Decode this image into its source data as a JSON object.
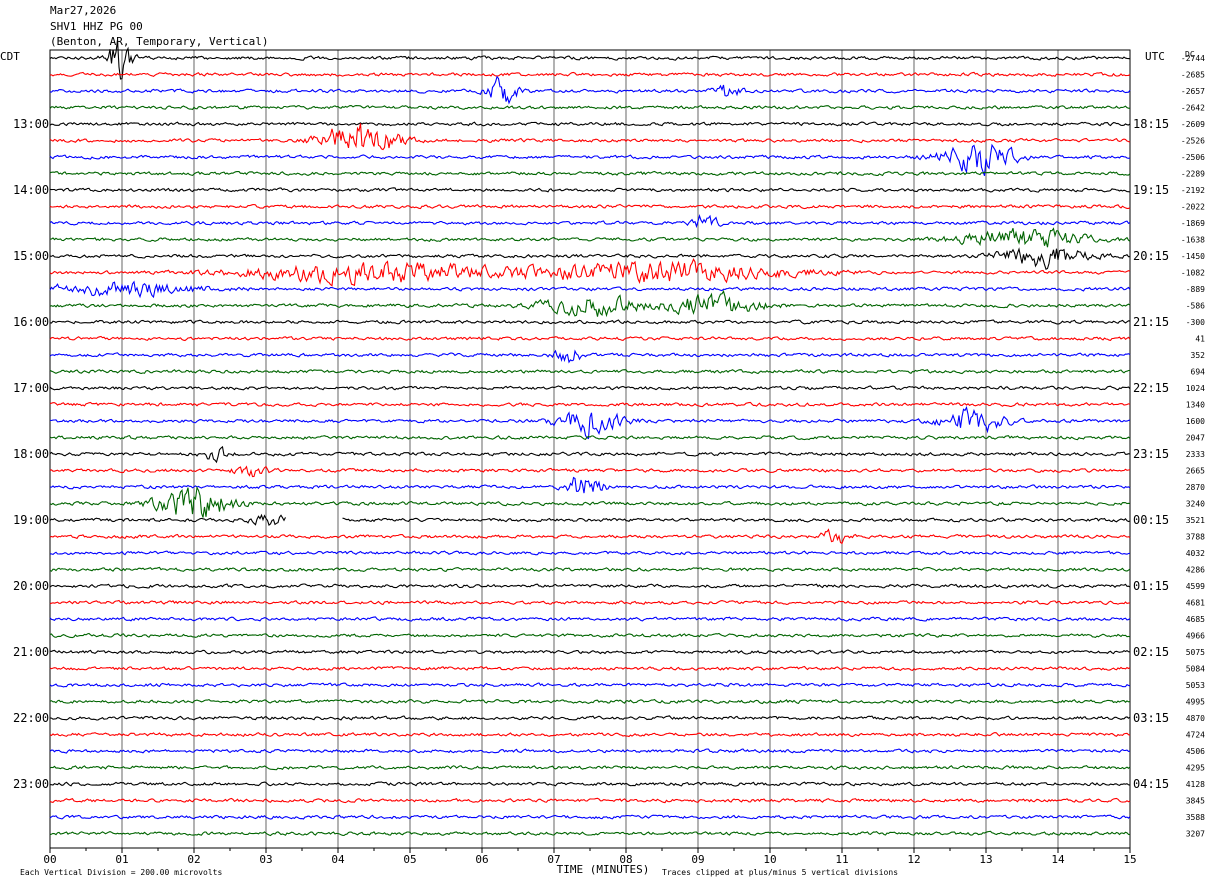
{
  "header": {
    "date": "Mar27,2026",
    "station": "SHV1 HHZ PG 00",
    "location": "(Benton, AR, Temporary, Vertical)"
  },
  "left_zone_label": "CDT",
  "right_zone_label": "UTC",
  "dc_label": "DC",
  "footer": {
    "scale_note": "Each Vertical Division =  200.00 microvolts",
    "clip_note": "Traces clipped at plus/minus 5 vertical divisions"
  },
  "colors": {
    "trace_cycle": [
      "#000000",
      "#ff0000",
      "#0000ff",
      "#006400"
    ],
    "grid": "#000000"
  },
  "chart_data": {
    "type": "line",
    "xlabel": "TIME (MINUTES)",
    "xlim": [
      0,
      15
    ],
    "x_ticks": [
      "00",
      "01",
      "02",
      "03",
      "04",
      "05",
      "06",
      "07",
      "08",
      "09",
      "10",
      "11",
      "12",
      "13",
      "14",
      "15"
    ],
    "left_time_labels": [
      "13:00",
      "14:00",
      "15:00",
      "16:00",
      "17:00",
      "18:00",
      "19:00",
      "20:00",
      "21:00",
      "22:00",
      "23:00"
    ],
    "right_time_labels": [
      "18:15",
      "19:15",
      "20:15",
      "21:15",
      "22:15",
      "23:15",
      "00:15",
      "01:15",
      "02:15",
      "03:15",
      "04:15"
    ],
    "trace_count": 48,
    "dc_offsets": [
      "-2744",
      "-2685",
      "-2657",
      "-2642",
      "-2609",
      "-2526",
      "-2506",
      "-2289",
      "-2192",
      "-2022",
      "-1869",
      "-1638",
      "-1450",
      "-1082",
      "-889",
      "-586",
      "-300",
      "41",
      "352",
      "694",
      "1024",
      "1340",
      "1600",
      "2047",
      "2333",
      "2665",
      "2870",
      "3240",
      "3521",
      "3788",
      "4032",
      "4286",
      "4599",
      "4681",
      "4685",
      "4966",
      "5075",
      "5084",
      "5053",
      "4995",
      "4870",
      "4724",
      "4506",
      "4295",
      "4128",
      "3845",
      "3588",
      "3207"
    ],
    "events": [
      {
        "trace": 0,
        "minute": 0.95,
        "width": 0.4,
        "amp": 5
      },
      {
        "trace": 2,
        "minute": 6.3,
        "width": 0.5,
        "amp": 3.5
      },
      {
        "trace": 2,
        "minute": 9.4,
        "width": 0.4,
        "amp": 2
      },
      {
        "trace": 5,
        "minute": 4.3,
        "width": 1.2,
        "amp": 4.5
      },
      {
        "trace": 6,
        "minute": 12.9,
        "width": 1.2,
        "amp": 3.5
      },
      {
        "trace": 10,
        "minute": 9.1,
        "width": 0.4,
        "amp": 2
      },
      {
        "trace": 11,
        "minute": 13.5,
        "width": 2.0,
        "amp": 2.5
      },
      {
        "trace": 12,
        "minute": 13.8,
        "width": 1.4,
        "amp": 2.5
      },
      {
        "trace": 13,
        "minute": 4.5,
        "width": 4.0,
        "amp": 2.5
      },
      {
        "trace": 13,
        "minute": 8.5,
        "width": 4.0,
        "amp": 2.5
      },
      {
        "trace": 14,
        "minute": 1.0,
        "width": 2.5,
        "amp": 1.5
      },
      {
        "trace": 15,
        "minute": 7.5,
        "width": 1.5,
        "amp": 2.5
      },
      {
        "trace": 15,
        "minute": 9.2,
        "width": 1.5,
        "amp": 2.5
      },
      {
        "trace": 18,
        "minute": 7.2,
        "width": 0.4,
        "amp": 2.5
      },
      {
        "trace": 22,
        "minute": 7.5,
        "width": 1.0,
        "amp": 3.5
      },
      {
        "trace": 22,
        "minute": 12.8,
        "width": 1.0,
        "amp": 3
      },
      {
        "trace": 24,
        "minute": 2.3,
        "width": 0.4,
        "amp": 1.5
      },
      {
        "trace": 25,
        "minute": 2.8,
        "width": 0.6,
        "amp": 1.5
      },
      {
        "trace": 26,
        "minute": 7.4,
        "width": 0.6,
        "amp": 3
      },
      {
        "trace": 27,
        "minute": 2.0,
        "width": 1.2,
        "amp": 4
      },
      {
        "trace": 28,
        "minute": 3.0,
        "width": 0.6,
        "amp": 1.5
      },
      {
        "trace": 29,
        "minute": 10.9,
        "width": 0.4,
        "amp": 2
      }
    ],
    "gaps": [
      {
        "trace": 28,
        "start_minute": 3.28,
        "end_minute": 4.05
      }
    ]
  }
}
